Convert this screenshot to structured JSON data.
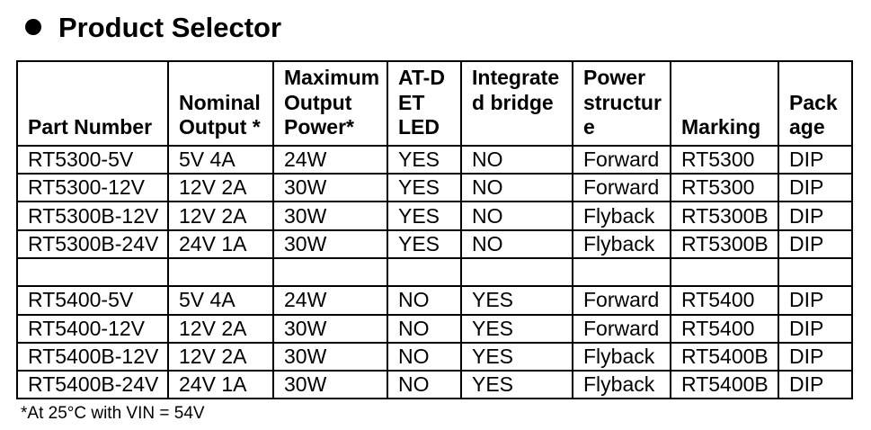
{
  "title": "Product Selector",
  "footnote": "*At 25°C with VIN = 54V",
  "colors": {
    "text": "#000000",
    "background": "#ffffff",
    "border": "#000000"
  },
  "table": {
    "columns": [
      {
        "id": "part-number",
        "label": "Part Number"
      },
      {
        "id": "nominal-output",
        "label": "Nominal\nOutput *"
      },
      {
        "id": "maximum-output-power",
        "label": "Maximum\nOutput\nPower*"
      },
      {
        "id": "atdet-led",
        "label": "AT-D\nET\nLED"
      },
      {
        "id": "integrated-bridge",
        "label": "Integrate\nd bridge"
      },
      {
        "id": "power-structure",
        "label": "Power\nstructur\ne"
      },
      {
        "id": "marking",
        "label": "Marking"
      },
      {
        "id": "package",
        "label": "Pack\nage"
      }
    ],
    "rows": [
      [
        "RT5300-5V",
        "5V 4A",
        "24W",
        "YES",
        "NO",
        "Forward",
        "RT5300",
        "DIP"
      ],
      [
        "RT5300-12V",
        "12V 2A",
        "30W",
        "YES",
        "NO",
        "Forward",
        "RT5300",
        "DIP"
      ],
      [
        "RT5300B-12V",
        "12V 2A",
        "30W",
        "YES",
        "NO",
        "Flyback",
        "RT5300B",
        "DIP"
      ],
      [
        "RT5300B-24V",
        "24V 1A",
        "30W",
        "YES",
        "NO",
        "Flyback",
        "RT5300B",
        "DIP"
      ],
      [
        "",
        "",
        "",
        "",
        "",
        "",
        "",
        ""
      ],
      [
        "RT5400-5V",
        "5V 4A",
        "24W",
        "NO",
        "YES",
        "Forward",
        "RT5400",
        "DIP"
      ],
      [
        "RT5400-12V",
        "12V 2A",
        "30W",
        "NO",
        "YES",
        "Forward",
        "RT5400",
        "DIP"
      ],
      [
        "RT5400B-12V",
        "12V 2A",
        "30W",
        "NO",
        "YES",
        "Flyback",
        "RT5400B",
        "DIP"
      ],
      [
        "RT5400B-24V",
        "24V 1A",
        "30W",
        "NO",
        "YES",
        "Flyback",
        "RT5400B",
        "DIP"
      ]
    ]
  }
}
